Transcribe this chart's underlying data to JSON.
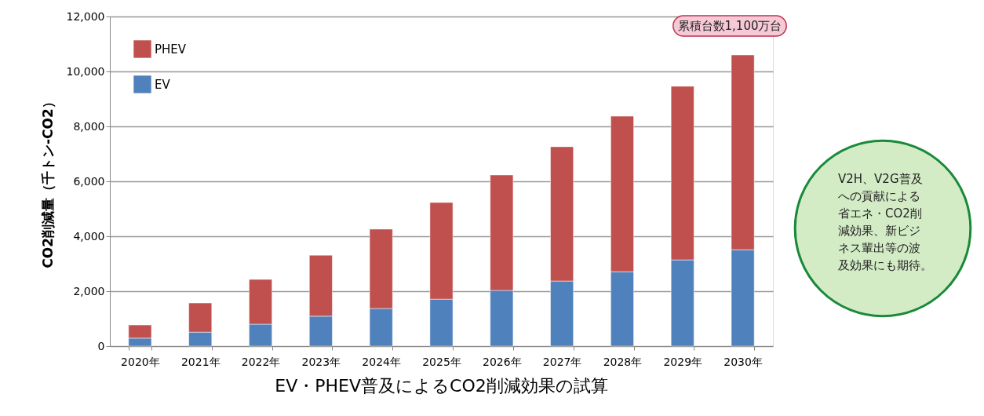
{
  "chart_data": {
    "type": "bar",
    "stacked": true,
    "title": "EV・PHEV普及によるCO2削減効果の試算",
    "ylabel": "CO2削減量（千トン-CO2）",
    "categories": [
      "2020年",
      "2021年",
      "2022年",
      "2023年",
      "2024年",
      "2025年",
      "2026年",
      "2027年",
      "2028年",
      "2029年",
      "2030年"
    ],
    "series": [
      {
        "name": "EV",
        "color": "#4f81bd",
        "values": [
          290,
          510,
          800,
          1090,
          1370,
          1710,
          2030,
          2370,
          2710,
          3140,
          3510
        ]
      },
      {
        "name": "PHEV",
        "color": "#c0504d",
        "values": [
          480,
          1060,
          1630,
          2220,
          2890,
          3520,
          4200,
          4890,
          5660,
          6320,
          7090
        ]
      }
    ],
    "ylim": [
      0,
      12000
    ],
    "yticks": [
      0,
      {
        "value": 2000,
        "label": "2,000"
      },
      {
        "value": 4000,
        "label": "4,000"
      },
      {
        "value": 6000,
        "label": "6,000"
      },
      {
        "value": 8000,
        "label": "8,000"
      },
      {
        "value": 10000,
        "label": "10,000"
      },
      {
        "value": 12000,
        "label": "12,000"
      }
    ],
    "grid": "y",
    "legend": "top left",
    "annotations": [
      "累積台数1,100万台",
      "V2H、V2G普及への貢献による省エネ・CO2削減効果、新ビジネス輩出等の波及効果にも期待。"
    ]
  }
}
